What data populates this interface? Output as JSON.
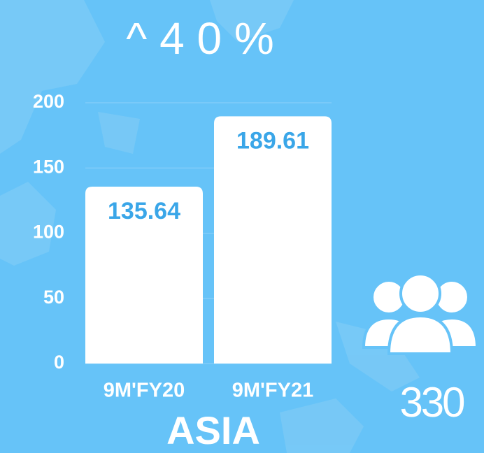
{
  "chart_data": {
    "type": "bar",
    "title": "^ 4 0 %",
    "x_label": "ASIA",
    "annotations": [
      "330"
    ],
    "categories": [
      "9M'FY20",
      "9M'FY21"
    ],
    "values": [
      135.64,
      189.61
    ],
    "color": "#ffffff",
    "ylim": [
      0,
      200
    ],
    "yticks": [
      0,
      50,
      100,
      150,
      200
    ],
    "grid": true
  }
}
